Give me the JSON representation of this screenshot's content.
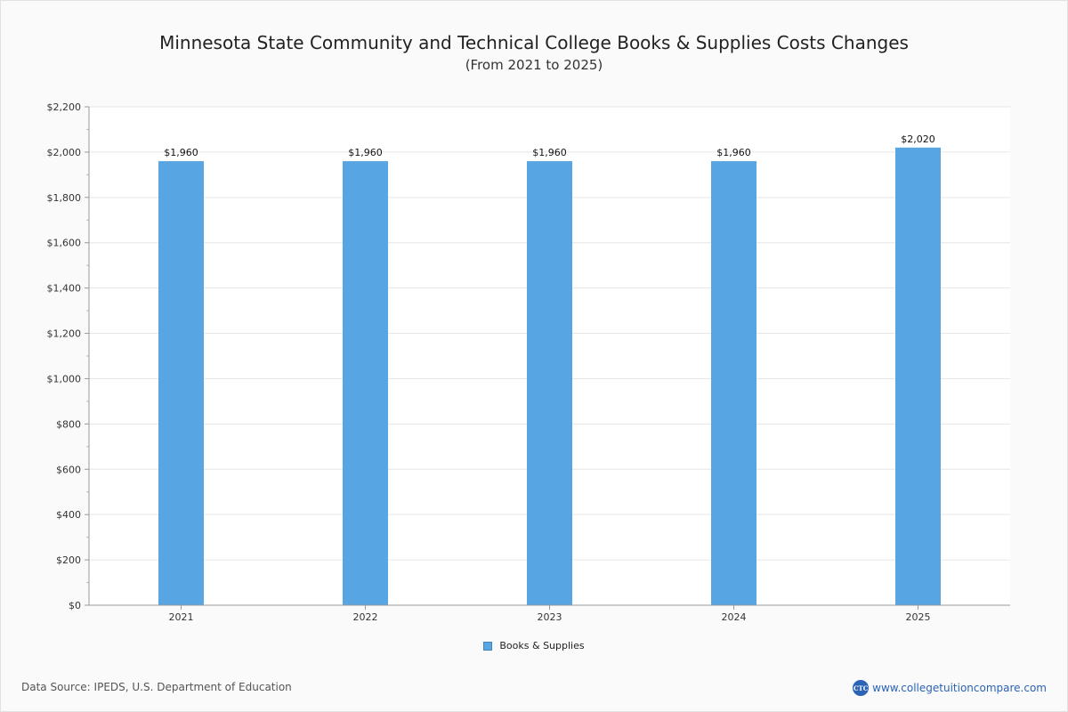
{
  "chart_data": {
    "type": "bar",
    "title": "Minnesota State Community and Technical College Books & Supplies Costs Changes",
    "subtitle": "(From 2021 to 2025)",
    "categories": [
      "2021",
      "2022",
      "2023",
      "2024",
      "2025"
    ],
    "series": [
      {
        "name": "Books & Supplies",
        "values": [
          1960,
          1960,
          1960,
          1960,
          2020
        ],
        "color": "#57a5e3"
      }
    ],
    "data_labels": [
      "$1,960",
      "$1,960",
      "$1,960",
      "$1,960",
      "$2,020"
    ],
    "ylim": [
      0,
      2200
    ],
    "yticks": [
      0,
      200,
      400,
      600,
      800,
      1000,
      1200,
      1400,
      1600,
      1800,
      2000,
      2200
    ],
    "ytick_labels": [
      "$0",
      "$200",
      "$400",
      "$600",
      "$800",
      "$1,000",
      "$1,200",
      "$1,400",
      "$1,600",
      "$1,800",
      "$2,000",
      "$2,200"
    ],
    "grid": true,
    "legend_position": "bottom-center"
  },
  "footer": {
    "source": "Data Source: IPEDS, U.S. Department of Education",
    "brand_logo_text": "CTC",
    "brand_url": "www.collegetuitioncompare.com"
  }
}
